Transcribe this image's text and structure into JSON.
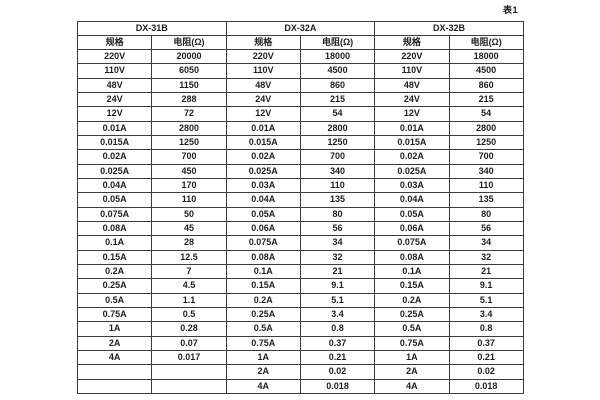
{
  "page": {
    "table_caption": "表1"
  },
  "table": {
    "groups": [
      {
        "name": "DX-31B",
        "spec_header": "规格",
        "res_header": "电阻(Ω)"
      },
      {
        "name": "DX-32A",
        "spec_header": "规格",
        "res_header": "电阻(Ω)"
      },
      {
        "name": "DX-32B",
        "spec_header": "规格",
        "res_header": "电阻(Ω)"
      }
    ],
    "rows": [
      [
        "220V",
        "20000",
        "220V",
        "18000",
        "220V",
        "18000"
      ],
      [
        "110V",
        "6050",
        "110V",
        "4500",
        "110V",
        "4500"
      ],
      [
        "48V",
        "1150",
        "48V",
        "860",
        "48V",
        "860"
      ],
      [
        "24V",
        "288",
        "24V",
        "215",
        "24V",
        "215"
      ],
      [
        "12V",
        "72",
        "12V",
        "54",
        "12V",
        "54"
      ],
      [
        "0.01A",
        "2800",
        "0.01A",
        "2800",
        "0.01A",
        "2800"
      ],
      [
        "0.015A",
        "1250",
        "0.015A",
        "1250",
        "0.015A",
        "1250"
      ],
      [
        "0.02A",
        "700",
        "0.02A",
        "700",
        "0.02A",
        "700"
      ],
      [
        "0.025A",
        "450",
        "0.025A",
        "340",
        "0.025A",
        "340"
      ],
      [
        "0.04A",
        "170",
        "0.03A",
        "110",
        "0.03A",
        "110"
      ],
      [
        "0.05A",
        "110",
        "0.04A",
        "135",
        "0.04A",
        "135"
      ],
      [
        "0.075A",
        "50",
        "0.05A",
        "80",
        "0.05A",
        "80"
      ],
      [
        "0.08A",
        "45",
        "0.06A",
        "56",
        "0.06A",
        "56"
      ],
      [
        "0.1A",
        "28",
        "0.075A",
        "34",
        "0.075A",
        "34"
      ],
      [
        "0.15A",
        "12.5",
        "0.08A",
        "32",
        "0.08A",
        "32"
      ],
      [
        "0.2A",
        "7",
        "0.1A",
        "21",
        "0.1A",
        "21"
      ],
      [
        "0.25A",
        "4.5",
        "0.15A",
        "9.1",
        "0.15A",
        "9.1"
      ],
      [
        "0.5A",
        "1.1",
        "0.2A",
        "5.1",
        "0.2A",
        "5.1"
      ],
      [
        "0.75A",
        "0.5",
        "0.25A",
        "3.4",
        "0.25A",
        "3.4"
      ],
      [
        "1A",
        "0.28",
        "0.5A",
        "0.8",
        "0.5A",
        "0.8"
      ],
      [
        "2A",
        "0.07",
        "0.75A",
        "0.37",
        "0.75A",
        "0.37"
      ],
      [
        "4A",
        "0.017",
        "1A",
        "0.21",
        "1A",
        "0.21"
      ],
      [
        "",
        "",
        "2A",
        "0.02",
        "2A",
        "0.02"
      ],
      [
        "",
        "",
        "4A",
        "0.018",
        "4A",
        "0.018"
      ]
    ]
  }
}
